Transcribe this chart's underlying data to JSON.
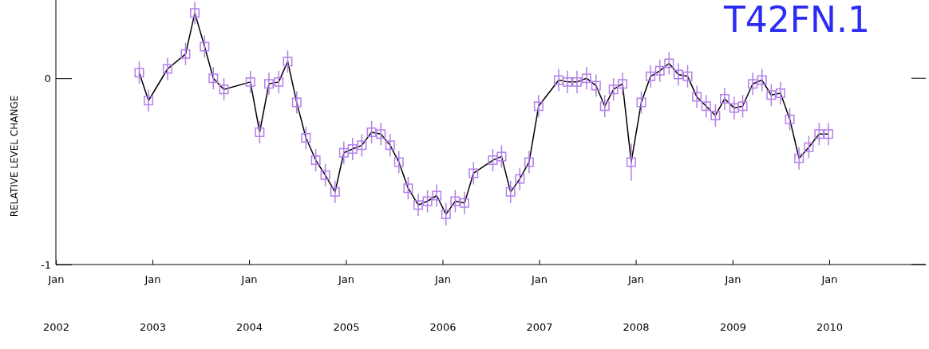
{
  "chart_data": {
    "type": "line",
    "title": "T42FN.1",
    "ylabel": "RELATIVE LEVEL CHANGE",
    "x": [
      "2002-11-12",
      "2002-12-17",
      "2003-02-27",
      "2003-05-06",
      "2003-06-10",
      "2003-07-17",
      "2003-08-19",
      "2003-09-28",
      "2004-01-06",
      "2004-02-10",
      "2004-03-16",
      "2004-04-22",
      "2004-05-26",
      "2004-06-29",
      "2004-08-03",
      "2004-09-09",
      "2004-10-15",
      "2004-11-21",
      "2004-12-24",
      "2005-01-26",
      "2005-03-02",
      "2005-04-08",
      "2005-05-13",
      "2005-06-17",
      "2005-07-20",
      "2005-08-24",
      "2005-10-01",
      "2005-11-05",
      "2005-12-10",
      "2006-01-14",
      "2006-02-18",
      "2006-03-25",
      "2006-04-28",
      "2006-07-10",
      "2006-08-12",
      "2006-09-15",
      "2006-10-20",
      "2006-11-24",
      "2006-12-30",
      "2007-03-16",
      "2007-04-18",
      "2007-05-24",
      "2007-06-29",
      "2007-08-04",
      "2007-09-06",
      "2007-10-09",
      "2007-11-12",
      "2007-12-15",
      "2008-01-22",
      "2008-02-26",
      "2008-04-01",
      "2008-05-06",
      "2008-06-10",
      "2008-07-15",
      "2008-08-19",
      "2008-09-23",
      "2008-10-28",
      "2008-12-02",
      "2009-01-07",
      "2009-02-08",
      "2009-03-18",
      "2009-04-22",
      "2009-05-27",
      "2009-07-01",
      "2009-08-05",
      "2009-09-09",
      "2009-10-16",
      "2009-11-24",
      "2009-12-29"
    ],
    "series": [
      {
        "type": "line",
        "marker": "none",
        "color": "#000000",
        "values": [
          0.03,
          -0.12,
          0.05,
          0.13,
          0.35,
          0.17,
          0.0,
          -0.06,
          -0.02,
          -0.29,
          -0.03,
          -0.02,
          0.09,
          -0.13,
          -0.32,
          -0.44,
          -0.52,
          -0.61,
          -0.4,
          -0.38,
          -0.36,
          -0.29,
          -0.3,
          -0.36,
          -0.45,
          -0.59,
          -0.68,
          -0.66,
          -0.63,
          -0.73,
          -0.66,
          -0.67,
          -0.51,
          -0.44,
          -0.42,
          -0.61,
          -0.54,
          -0.45,
          -0.15,
          -0.01,
          -0.02,
          -0.02,
          0.0,
          -0.04,
          -0.15,
          -0.06,
          -0.03,
          -0.45,
          -0.13,
          0.01,
          0.04,
          0.08,
          0.02,
          0.01,
          -0.1,
          -0.15,
          -0.2,
          -0.11,
          -0.16,
          -0.15,
          -0.03,
          -0.01,
          -0.09,
          -0.08,
          -0.22,
          -0.43,
          -0.37,
          -0.3,
          -0.3
        ]
      },
      {
        "type": "scatter",
        "marker": "square",
        "color": "#b57fe8",
        "values": [
          0.03,
          -0.12,
          0.05,
          0.13,
          0.35,
          0.17,
          0.0,
          -0.06,
          -0.02,
          -0.29,
          -0.03,
          -0.02,
          0.09,
          -0.13,
          -0.32,
          -0.44,
          -0.52,
          -0.61,
          -0.4,
          -0.38,
          -0.36,
          -0.29,
          -0.3,
          -0.36,
          -0.45,
          -0.59,
          -0.68,
          -0.66,
          -0.63,
          -0.73,
          -0.66,
          -0.67,
          -0.51,
          -0.44,
          -0.42,
          -0.61,
          -0.54,
          -0.45,
          -0.15,
          -0.01,
          -0.02,
          -0.02,
          0.0,
          -0.04,
          -0.15,
          -0.06,
          -0.03,
          -0.45,
          -0.13,
          0.01,
          0.04,
          0.08,
          0.02,
          0.01,
          -0.1,
          -0.15,
          -0.2,
          -0.11,
          -0.16,
          -0.15,
          -0.03,
          -0.01,
          -0.09,
          -0.08,
          -0.22,
          -0.43,
          -0.37,
          -0.3,
          -0.3
        ],
        "errors": [
          0.06,
          0.06,
          0.06,
          0.06,
          0.06,
          0.06,
          0.06,
          0.06,
          0.06,
          0.06,
          0.06,
          0.06,
          0.06,
          0.06,
          0.06,
          0.06,
          0.06,
          0.06,
          0.06,
          0.06,
          0.06,
          0.06,
          0.06,
          0.06,
          0.06,
          0.06,
          0.06,
          0.06,
          0.06,
          0.06,
          0.06,
          0.06,
          0.06,
          0.06,
          0.06,
          0.06,
          0.06,
          0.06,
          0.06,
          0.06,
          0.06,
          0.06,
          0.06,
          0.06,
          0.06,
          0.06,
          0.06,
          0.1,
          0.06,
          0.06,
          0.06,
          0.06,
          0.06,
          0.06,
          0.06,
          0.06,
          0.06,
          0.06,
          0.06,
          0.06,
          0.06,
          0.06,
          0.06,
          0.06,
          0.06,
          0.06,
          0.06,
          0.06,
          0.06
        ]
      }
    ],
    "xlim": [
      "2002-01-01",
      "2011-01-01"
    ],
    "xticks": [
      {
        "value": "2002-01-01",
        "label": "Jan"
      },
      {
        "value": "2003-01-01",
        "label": "Jan"
      },
      {
        "value": "2004-01-01",
        "label": "Jan"
      },
      {
        "value": "2005-01-01",
        "label": "Jan"
      },
      {
        "value": "2006-01-01",
        "label": "Jan"
      },
      {
        "value": "2007-01-01",
        "label": "Jan"
      },
      {
        "value": "2008-01-01",
        "label": "Jan"
      },
      {
        "value": "2009-01-01",
        "label": "Jan"
      },
      {
        "value": "2010-01-01",
        "label": "Jan"
      }
    ],
    "x2lim": [
      "2002-01-01",
      "2011-01-01"
    ],
    "x2ticks": [
      {
        "value": "2002-01-01",
        "label": "2002"
      },
      {
        "value": "2003-01-01",
        "label": "2003"
      },
      {
        "value": "2004-01-01",
        "label": "2004"
      },
      {
        "value": "2005-01-01",
        "label": "2005"
      },
      {
        "value": "2006-01-01",
        "label": "2006"
      },
      {
        "value": "2007-01-01",
        "label": "2007"
      },
      {
        "value": "2008-01-01",
        "label": "2008"
      },
      {
        "value": "2009-01-01",
        "label": "2009"
      },
      {
        "value": "2010-01-01",
        "label": "2010"
      }
    ],
    "ylim": [
      -1,
      0.42
    ],
    "yticks": [
      -1,
      0
    ]
  }
}
